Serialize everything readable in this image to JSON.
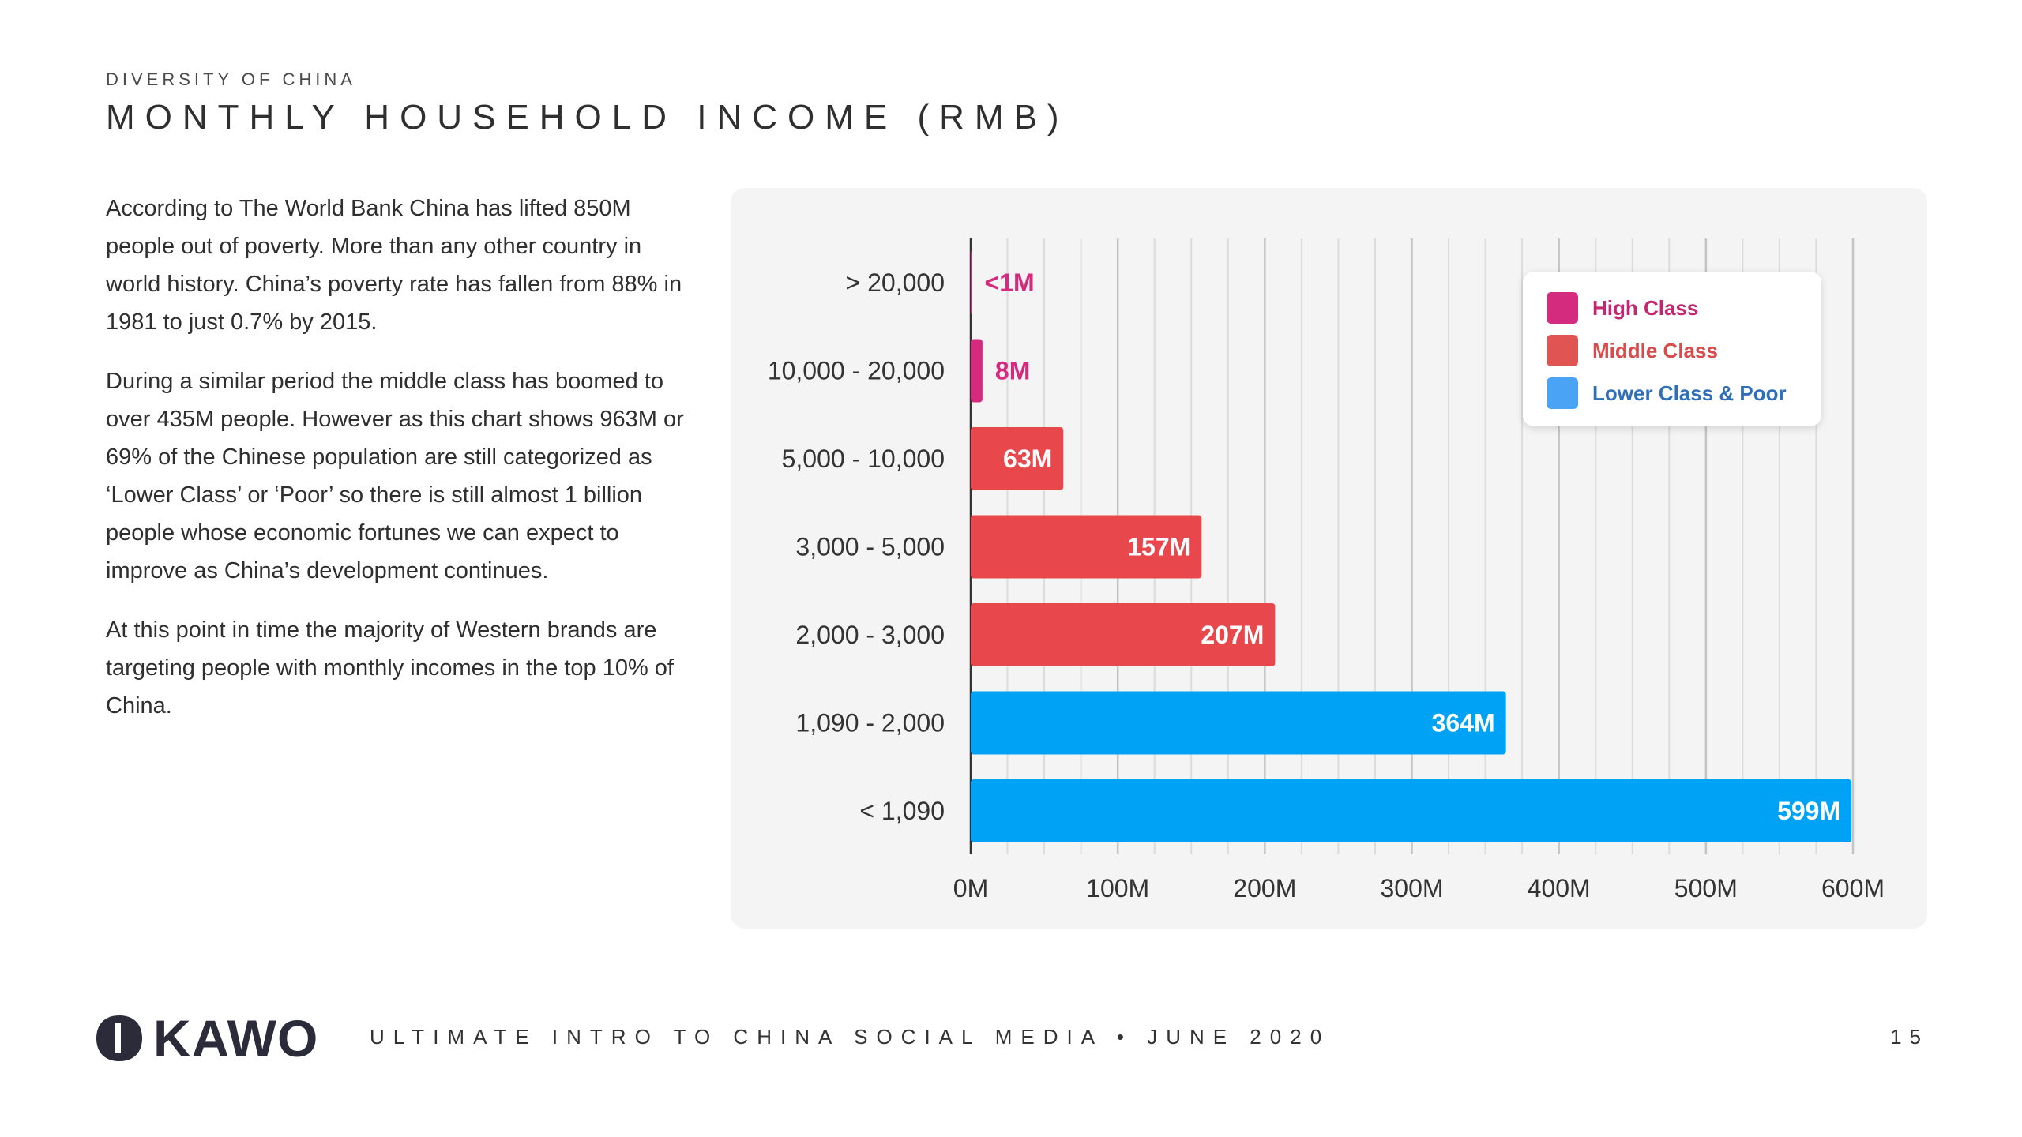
{
  "header": {
    "eyebrow": "DIVERSITY OF CHINA",
    "title": "MONTHLY HOUSEHOLD INCOME (RMB)"
  },
  "body": {
    "paragraphs": [
      "According to The World Bank China has lifted 850M people out of poverty. More than any other country in world history. China’s poverty rate has fallen from 88% in 1981 to just 0.7% by 2015.",
      "During a similar period the middle class has boomed to over 435M people. However as this chart shows 963M or 69% of the Chinese population are still categorized as ‘Lower Class’ or ‘Poor’ so there is still almost 1 billion people whose economic fortunes we can expect to improve as China’s development continues.",
      "At this point in time the majority of Western brands are targeting people with monthly incomes in the top 10% of China."
    ]
  },
  "legend": {
    "items": [
      {
        "label": "High Class",
        "color": "#d42b7f",
        "text_color": "#c4276f"
      },
      {
        "label": "Middle Class",
        "color": "#e05454",
        "text_color": "#d94a4a"
      },
      {
        "label": "Lower Class & Poor",
        "color": "#4ba3f5",
        "text_color": "#2f6fb8"
      }
    ]
  },
  "chart_data": {
    "type": "bar",
    "orientation": "horizontal",
    "categories": [
      "> 20,000",
      "10,000 - 20,000",
      "5,000 - 10,000",
      "3,000 - 5,000",
      "2,000 - 3,000",
      "1,090 - 2,000",
      "< 1,090"
    ],
    "values": [
      0.5,
      8,
      63,
      157,
      207,
      364,
      599
    ],
    "data_labels": [
      "<1M",
      "8M",
      "63M",
      "157M",
      "207M",
      "364M",
      "599M"
    ],
    "series_class": [
      "High Class",
      "High Class",
      "Middle Class",
      "Middle Class",
      "Middle Class",
      "Lower Class & Poor",
      "Lower Class & Poor"
    ],
    "colors": {
      "High Class": "#d42b7f",
      "Middle Class": "#e8474c",
      "Lower Class & Poor": "#00a2f5"
    },
    "xlim": [
      0,
      600
    ],
    "xticks": [
      0,
      100,
      200,
      300,
      400,
      500,
      600
    ],
    "xtick_labels": [
      "0M",
      "100M",
      "200M",
      "300M",
      "400M",
      "500M",
      "600M"
    ],
    "minor_step": 25,
    "grid": true,
    "legend_position": "top-right"
  },
  "footer": {
    "logo": "KAWO",
    "text": "ULTIMATE INTRO TO CHINA SOCIAL MEDIA  •  JUNE 2020",
    "page": "15"
  }
}
